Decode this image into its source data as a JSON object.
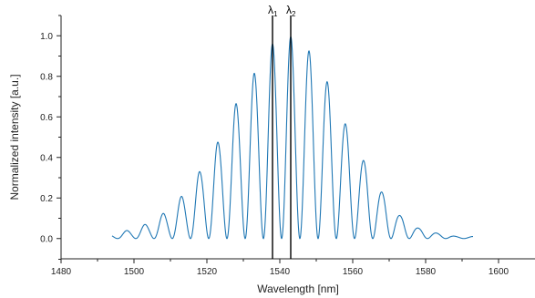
{
  "chart_data": {
    "type": "line",
    "xlabel": "Wavelength [nm]",
    "ylabel": "Normalized intensity [a.u.]",
    "xlim": [
      1480,
      1610
    ],
    "ylim": [
      -0.1,
      1.1
    ],
    "x_ticks": [
      1480,
      1500,
      1520,
      1540,
      1560,
      1580,
      1600
    ],
    "y_ticks": [
      0.0,
      0.2,
      0.4,
      0.6,
      0.8,
      1.0
    ],
    "x_tick_labels": [
      "1480",
      "1500",
      "1520",
      "1540",
      "1560",
      "1580",
      "1600"
    ],
    "y_tick_labels": [
      "0.0",
      "0.2",
      "0.4",
      "0.6",
      "0.8",
      "1.0"
    ],
    "grid": false,
    "line_color": "#1f77b4",
    "series": [
      {
        "x_start": 1494,
        "x_end": 1593,
        "fringe_period_nm": 5.0,
        "floor": 0.0,
        "peaks": [
          {
            "x": 1494,
            "y": 0.02
          },
          {
            "x": 1498.5,
            "y": 0.04
          },
          {
            "x": 1503.5,
            "y": 0.07
          },
          {
            "x": 1508.5,
            "y": 0.125
          },
          {
            "x": 1513.5,
            "y": 0.21
          },
          {
            "x": 1518,
            "y": 0.33
          },
          {
            "x": 1523,
            "y": 0.475
          },
          {
            "x": 1528,
            "y": 0.665
          },
          {
            "x": 1533,
            "y": 0.815
          },
          {
            "x": 1538,
            "y": 0.96
          },
          {
            "x": 1543,
            "y": 0.995
          },
          {
            "x": 1548,
            "y": 0.925
          },
          {
            "x": 1553.5,
            "y": 0.77
          },
          {
            "x": 1558.5,
            "y": 0.56
          },
          {
            "x": 1563.5,
            "y": 0.38
          },
          {
            "x": 1568.5,
            "y": 0.225
          },
          {
            "x": 1573.5,
            "y": 0.11
          },
          {
            "x": 1578.5,
            "y": 0.05
          },
          {
            "x": 1584,
            "y": 0.025
          },
          {
            "x": 1589,
            "y": 0.01
          }
        ]
      }
    ],
    "markers": [
      {
        "x": 1538,
        "label": "λ",
        "subscript": "1"
      },
      {
        "x": 1543,
        "label": "λ",
        "subscript": "2"
      }
    ]
  }
}
